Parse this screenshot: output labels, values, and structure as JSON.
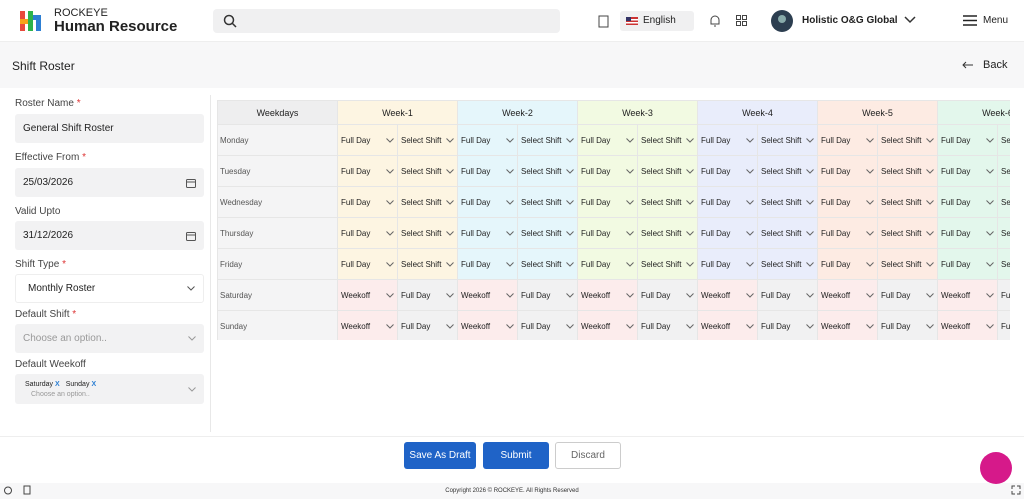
{
  "header": {
    "brand_top": "ROCKEYE",
    "brand_bottom": "Human Resource",
    "language": "English",
    "user": "Holistic O&G Global",
    "menu": "Menu"
  },
  "page": {
    "title": "Shift Roster",
    "back": "Back"
  },
  "form": {
    "fields": [
      {
        "label": "Roster Name",
        "required": "*",
        "value": "General Shift Roster"
      },
      {
        "label": "Effective From",
        "required": "*",
        "value": "25/03/2026"
      },
      {
        "label": "Valid Upto",
        "value": "31/12/2026"
      },
      {
        "label": "Shift Type",
        "required": "*",
        "value": "Monthly Roster"
      },
      {
        "label": "Default Shift",
        "required": "*",
        "placeholder": "Choose an option.."
      },
      {
        "label": "Default Weekoff",
        "tags": [
          "Saturday",
          "Sunday"
        ],
        "tag_remove": "X",
        "placeholder": "Choose an option.."
      }
    ]
  },
  "roster": {
    "columns": [
      "Weekdays",
      "Week-1",
      "Week-2",
      "Week-3",
      "Week-4",
      "Week-5",
      "Week-6"
    ],
    "rows": [
      {
        "day": "Monday",
        "cells": [
          "Full Day",
          "Select Shift",
          "Full Day",
          "Select Shift",
          "Full Day",
          "Select Shift",
          "Full Day",
          "Select Shift",
          "Full Day",
          "Select Shift",
          "Full Day",
          "Select Shift"
        ]
      },
      {
        "day": "Tuesday",
        "cells": [
          "Full Day",
          "Select Shift",
          "Full Day",
          "Select Shift",
          "Full Day",
          "Select Shift",
          "Full Day",
          "Select Shift",
          "Full Day",
          "Select Shift",
          "Full Day",
          "Select Shift"
        ]
      },
      {
        "day": "Wednesday",
        "cells": [
          "Full Day",
          "Select Shift",
          "Full Day",
          "Select Shift",
          "Full Day",
          "Select Shift",
          "Full Day",
          "Select Shift",
          "Full Day",
          "Select Shift",
          "Full Day",
          "Select Shift"
        ]
      },
      {
        "day": "Thursday",
        "cells": [
          "Full Day",
          "Select Shift",
          "Full Day",
          "Select Shift",
          "Full Day",
          "Select Shift",
          "Full Day",
          "Select Shift",
          "Full Day",
          "Select Shift",
          "Full Day",
          "Select Shift"
        ]
      },
      {
        "day": "Friday",
        "cells": [
          "Full Day",
          "Select Shift",
          "Full Day",
          "Select Shift",
          "Full Day",
          "Select Shift",
          "Full Day",
          "Select Shift",
          "Full Day",
          "Select Shift",
          "Full Day",
          "Select Shift"
        ]
      },
      {
        "day": "Saturday",
        "cells": [
          "Weekoff",
          "Full Day",
          "Weekoff",
          "Full Day",
          "Weekoff",
          "Full Day",
          "Weekoff",
          "Full Day",
          "Weekoff",
          "Full Day",
          "Weekoff",
          "Full Day"
        ]
      },
      {
        "day": "Sunday",
        "cells": [
          "Weekoff",
          "Full Day",
          "Weekoff",
          "Full Day",
          "Weekoff",
          "Full Day",
          "Weekoff",
          "Full Day",
          "Weekoff",
          "Full Day",
          "Weekoff",
          "Full Day"
        ]
      }
    ]
  },
  "actions": [
    "Save As Draft",
    "Submit",
    "Discard"
  ],
  "footer": "Copyright 2026 © ROCKEYE. All Rights Reserved"
}
